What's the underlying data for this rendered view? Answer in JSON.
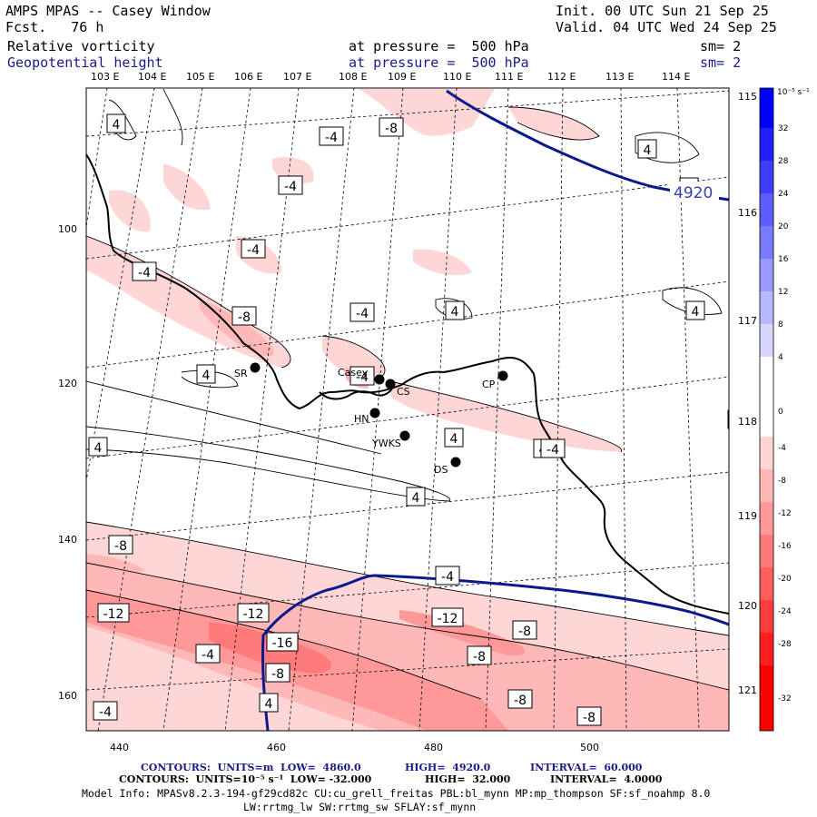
{
  "header": {
    "model": "AMPS MPAS -- Casey Window",
    "forecast": "Fcst.   76 h",
    "init": "Init. 00 UTC Sun 21 Sep 25",
    "valid": "Valid. 04 UTC Wed 24 Sep 25",
    "field1": "Relative vorticity",
    "field2": "Geopotential height",
    "pressure1": "at pressure =  500 hPa",
    "pressure2": "at pressure =  500 hPa",
    "sm1": "sm= 2",
    "sm2": "sm= 2"
  },
  "lon_labels_top": [
    "103 E",
    "104 E",
    "105 E",
    "106 E",
    "107 E",
    "108 E",
    "109 E",
    "110 E",
    "111 E",
    "112 E",
    "113 E",
    "114 E"
  ],
  "lon_labels_right": [
    "115 E",
    "116 E",
    "117 E",
    "118 E",
    "119 E",
    "120 E",
    "121 E"
  ],
  "y_ticks": [
    "100",
    "120",
    "140",
    "160"
  ],
  "x_ticks": [
    "440",
    "460",
    "480",
    "500"
  ],
  "colorbar": {
    "unit": "10⁻⁵ s⁻¹",
    "labels": [
      "32",
      "28",
      "24",
      "20",
      "16",
      "12",
      "8",
      "4",
      "0",
      "-4",
      "-8",
      "-12",
      "-16",
      "-20",
      "-24",
      "-28",
      "-32"
    ],
    "colors": [
      "#0000ff",
      "#1f1fff",
      "#3d3dff",
      "#5c5cff",
      "#7a7aff",
      "#9999ff",
      "#b8b8ff",
      "#d6d6ff",
      "#ffffff",
      "#ffd6d6",
      "#ffb8b8",
      "#ff9999",
      "#ff7a7a",
      "#ff5c5c",
      "#ff3d3d",
      "#ff1f1f",
      "#ff0000"
    ]
  },
  "stations": [
    {
      "name": "SR"
    },
    {
      "name": "Casey"
    },
    {
      "name": "CS"
    },
    {
      "name": "CP"
    },
    {
      "name": "HN"
    },
    {
      "name": "YWKS"
    },
    {
      "name": "DS"
    }
  ],
  "contour_labels": [
    "4",
    "-4",
    "-8",
    "4",
    "4",
    "-4",
    "-4",
    "-4",
    "-8",
    "-4",
    "4",
    "4",
    "4",
    "-4",
    "4",
    "4",
    "4",
    "4",
    "-4",
    "4",
    "-8",
    "-4",
    "-12",
    "-12",
    "-12",
    "-8",
    "-16",
    "-4",
    "-8",
    "-8",
    "-8",
    "-8",
    "4",
    "-4"
  ],
  "height_label": "4920",
  "footer": {
    "line1_a": "CONTOURS:  UNITS=m  LOW=  4860.0",
    "line1_b": "HIGH=  4920.0",
    "line1_c": "INTERVAL=  60.000",
    "line2_a": "CONTOURS:  UNITS=10⁻⁵ s⁻¹  LOW= -32.000",
    "line2_b": "HIGH=  32.000",
    "line2_c": "INTERVAL=  4.0000",
    "line3": "Model Info: MPASv8.2.3-194-gf29cd82c CU:cu_grell_freitas PBL:bl_mynn MP:mp_thompson SF:sf_noahmp 8.0",
    "line4": "LW:rrtmg_lw SW:rrtmg_sw SFLAY:sf_mynn"
  }
}
